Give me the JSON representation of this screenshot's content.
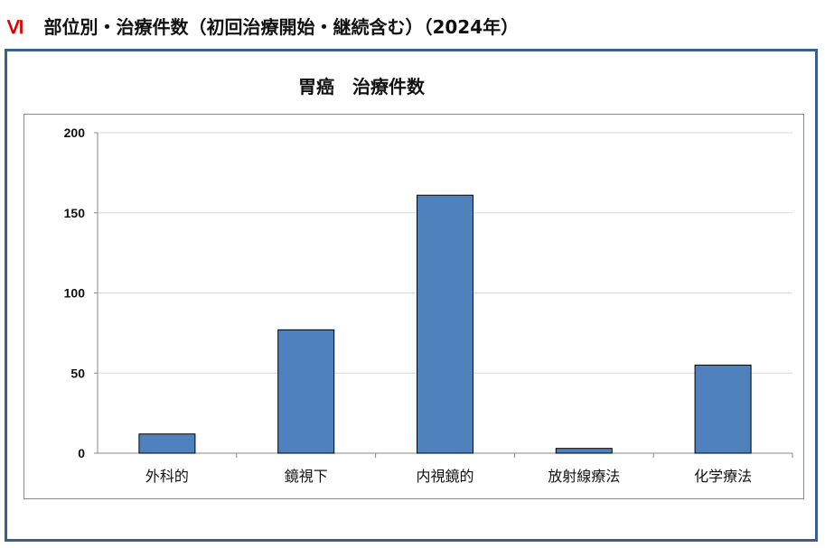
{
  "heading": {
    "roman": "Ⅵ",
    "text": "部位別・治療件数（初回治療開始・継続含む）（2024年）"
  },
  "chart_data": {
    "type": "bar",
    "title": "胃癌　治療件数",
    "categories": [
      "外科的",
      "鏡視下",
      "内視鏡的",
      "放射線療法",
      "化学療法"
    ],
    "values": [
      12,
      77,
      161,
      3,
      55
    ],
    "ylim": [
      0,
      200
    ],
    "yticks": [
      0,
      50,
      100,
      150,
      200
    ],
    "grid": true,
    "bar_color": "#4f81bd",
    "xlabel": "",
    "ylabel": ""
  }
}
